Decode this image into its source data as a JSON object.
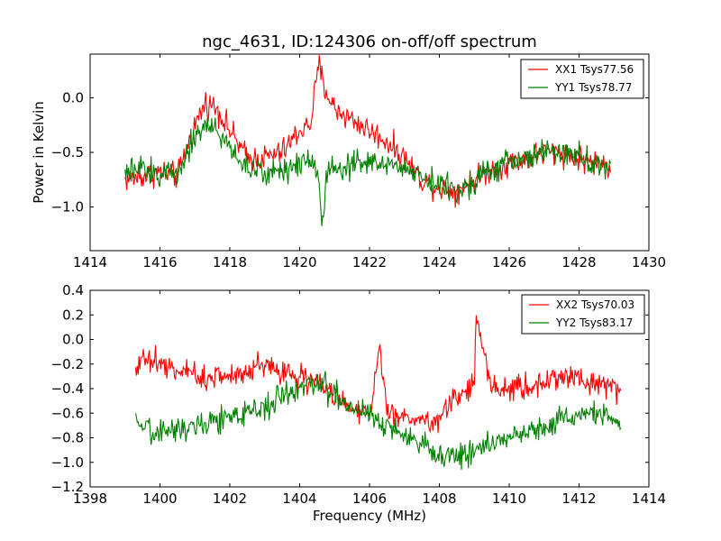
{
  "figure_title": "ngc_4631, ID:124306 on-off/off spectrum",
  "colors": {
    "series_1": "#ff0000",
    "series_2": "#008000",
    "axes": "#000000",
    "background": "#ffffff"
  },
  "chart_data": [
    {
      "type": "line",
      "title": "ngc_4631, ID:124306 on-off/off spectrum",
      "xlabel": "",
      "ylabel": "Power in Kelvin",
      "xlim": [
        1414,
        1430
      ],
      "ylim": [
        -1.4,
        0.4
      ],
      "xticks": [
        1414,
        1416,
        1418,
        1420,
        1422,
        1424,
        1426,
        1428,
        1430
      ],
      "yticks": [
        -1.0,
        -0.5,
        0.0
      ],
      "ytick_labels": [
        "−1.0",
        "−0.5",
        "0.0"
      ],
      "grid": false,
      "legend_position": "top-right",
      "series": [
        {
          "name": "XX1 Tsys77.56",
          "color": "#ff0000",
          "x": [
            1415.0,
            1415.5,
            1416.0,
            1416.5,
            1417.0,
            1417.3,
            1417.6,
            1418.0,
            1418.5,
            1419.0,
            1419.5,
            1420.0,
            1420.3,
            1420.55,
            1420.7,
            1421.0,
            1421.5,
            1422.0,
            1422.5,
            1423.0,
            1423.5,
            1424.0,
            1424.5,
            1425.0,
            1425.5,
            1426.0,
            1426.5,
            1427.0,
            1427.5,
            1428.0,
            1428.5,
            1428.9
          ],
          "y": [
            -0.75,
            -0.72,
            -0.68,
            -0.72,
            -0.25,
            -0.05,
            -0.08,
            -0.3,
            -0.55,
            -0.55,
            -0.5,
            -0.3,
            -0.25,
            0.3,
            0.1,
            -0.1,
            -0.2,
            -0.3,
            -0.4,
            -0.55,
            -0.75,
            -0.82,
            -0.85,
            -0.75,
            -0.65,
            -0.6,
            -0.55,
            -0.5,
            -0.5,
            -0.55,
            -0.6,
            -0.62
          ]
        },
        {
          "name": "YY1 Tsys78.77",
          "color": "#008000",
          "x": [
            1415.0,
            1415.5,
            1416.0,
            1416.5,
            1417.0,
            1417.3,
            1417.6,
            1418.0,
            1418.5,
            1419.0,
            1419.5,
            1420.0,
            1420.3,
            1420.55,
            1420.65,
            1420.8,
            1421.0,
            1421.5,
            1422.0,
            1422.5,
            1423.0,
            1423.5,
            1424.0,
            1424.5,
            1425.0,
            1425.5,
            1426.0,
            1426.5,
            1427.0,
            1427.5,
            1428.0,
            1428.5,
            1428.9
          ],
          "y": [
            -0.7,
            -0.65,
            -0.7,
            -0.68,
            -0.35,
            -0.25,
            -0.3,
            -0.45,
            -0.65,
            -0.7,
            -0.65,
            -0.6,
            -0.55,
            -0.7,
            -1.2,
            -0.6,
            -0.65,
            -0.6,
            -0.6,
            -0.6,
            -0.65,
            -0.7,
            -0.8,
            -0.85,
            -0.75,
            -0.65,
            -0.6,
            -0.55,
            -0.5,
            -0.5,
            -0.55,
            -0.6,
            -0.65
          ]
        }
      ]
    },
    {
      "type": "line",
      "title": "",
      "xlabel": "Frequency (MHz)",
      "ylabel": "",
      "xlim": [
        1398,
        1414
      ],
      "ylim": [
        -1.2,
        0.4
      ],
      "xticks": [
        1398,
        1400,
        1402,
        1404,
        1406,
        1408,
        1410,
        1412,
        1414
      ],
      "yticks": [
        -1.2,
        -1.0,
        -0.8,
        -0.6,
        -0.4,
        -0.2,
        0.0,
        0.2,
        0.4
      ],
      "ytick_labels": [
        "−1.2",
        "−1.0",
        "−0.8",
        "−0.6",
        "−0.4",
        "−0.2",
        "0.0",
        "0.2",
        "0.4"
      ],
      "grid": false,
      "legend_position": "top-right",
      "series": [
        {
          "name": "XX2 Tsys70.03",
          "color": "#ff0000",
          "x": [
            1399.3,
            1399.6,
            1400.0,
            1400.5,
            1401.0,
            1401.5,
            1402.0,
            1402.5,
            1403.0,
            1403.5,
            1404.0,
            1404.5,
            1405.0,
            1405.5,
            1406.0,
            1406.3,
            1406.5,
            1407.0,
            1407.5,
            1408.0,
            1408.5,
            1409.0,
            1409.05,
            1409.5,
            1410.0,
            1410.5,
            1411.0,
            1411.5,
            1412.0,
            1412.5,
            1413.0,
            1413.2
          ],
          "y": [
            -0.2,
            -0.15,
            -0.2,
            -0.25,
            -0.3,
            -0.3,
            -0.3,
            -0.25,
            -0.2,
            -0.25,
            -0.3,
            -0.35,
            -0.45,
            -0.55,
            -0.6,
            -0.1,
            -0.6,
            -0.65,
            -0.65,
            -0.65,
            -0.45,
            -0.4,
            0.22,
            -0.4,
            -0.4,
            -0.4,
            -0.35,
            -0.3,
            -0.3,
            -0.35,
            -0.4,
            -0.45
          ]
        },
        {
          "name": "YY2 Tsys83.17",
          "color": "#008000",
          "x": [
            1399.3,
            1399.6,
            1400.0,
            1400.5,
            1401.0,
            1401.5,
            1402.0,
            1402.5,
            1403.0,
            1403.5,
            1404.0,
            1404.5,
            1405.0,
            1405.5,
            1406.0,
            1406.5,
            1407.0,
            1407.5,
            1408.0,
            1408.5,
            1409.0,
            1409.5,
            1410.0,
            1410.5,
            1411.0,
            1411.5,
            1412.0,
            1412.5,
            1413.0,
            1413.2
          ],
          "y": [
            -0.7,
            -0.75,
            -0.75,
            -0.72,
            -0.7,
            -0.65,
            -0.65,
            -0.6,
            -0.55,
            -0.45,
            -0.4,
            -0.35,
            -0.45,
            -0.55,
            -0.6,
            -0.7,
            -0.8,
            -0.85,
            -0.95,
            -0.95,
            -0.9,
            -0.85,
            -0.8,
            -0.75,
            -0.7,
            -0.65,
            -0.6,
            -0.6,
            -0.65,
            -0.75
          ]
        }
      ]
    }
  ]
}
